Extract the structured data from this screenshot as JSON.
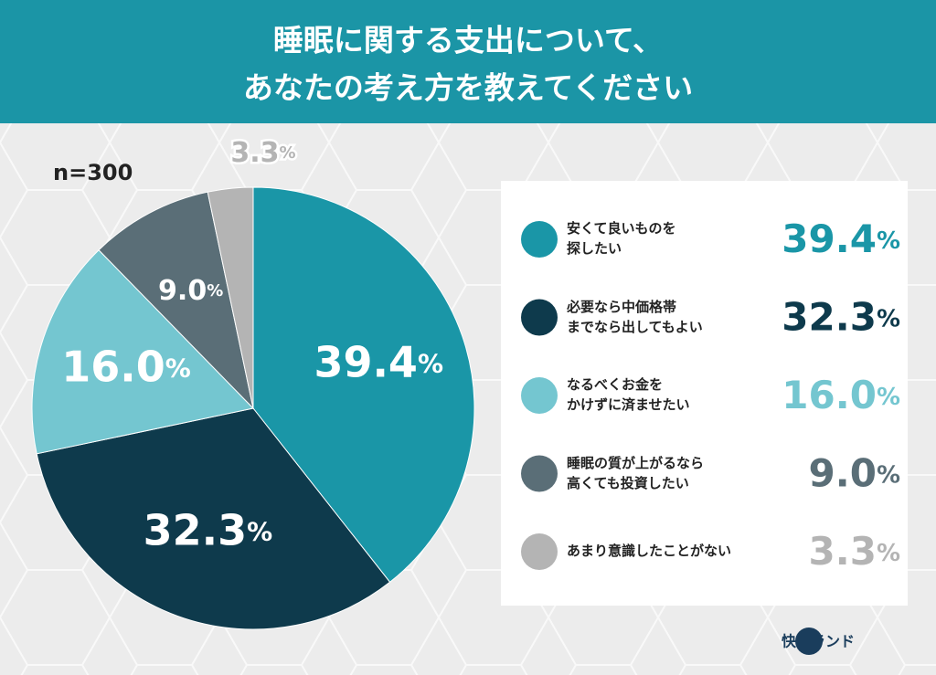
{
  "chart_data": {
    "type": "pie",
    "title": [
      "睡眠に関する支出について、",
      "あなたの考え方を教えてください"
    ],
    "note": "n=300",
    "categories": [
      "安くて良いものを\n探したい",
      "必要なら中価格帯\nまでなら出してもよい",
      "なるべくお金を\nかけずに済ませたい",
      "睡眠の質が上がるなら\n高くても投資したい",
      "あまり意識したことがない"
    ],
    "values": [
      39.4,
      32.3,
      16,
      9,
      3.3
    ],
    "value_labels": [
      "39.4%",
      "32.3%",
      "16.0%",
      "9.0%",
      "3.3%"
    ],
    "colors": [
      "#1a96a7",
      "#0e3a4c",
      "#74c6d0",
      "#5a6e77",
      "#b4b4b4"
    ],
    "logo": "快眠ランド"
  }
}
